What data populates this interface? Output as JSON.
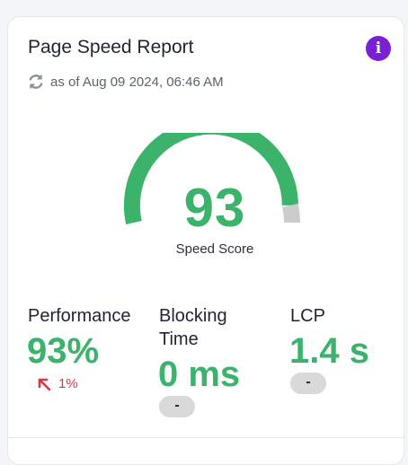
{
  "card": {
    "title": "Page Speed Report",
    "info_label": "i",
    "as_of": "as of Aug 09 2024, 06:46 AM"
  },
  "score": {
    "value": 93,
    "display": "93",
    "label": "Speed Score",
    "max": 100,
    "good_color": "#3bb36a",
    "remainder_color": "#cccccc"
  },
  "metrics": [
    {
      "label": "Performance",
      "value": "93%",
      "trend": "1%",
      "trend_direction": "up-left",
      "trend_color": "#d13b3b"
    },
    {
      "label": "Blocking Time",
      "value": "0 ms",
      "badge": "-"
    },
    {
      "label": "LCP",
      "value": "1.4 s",
      "badge": "-"
    }
  ],
  "icons": {
    "refresh": "refresh-icon",
    "info": "info-icon",
    "trend": "arrow-up-left-icon"
  }
}
